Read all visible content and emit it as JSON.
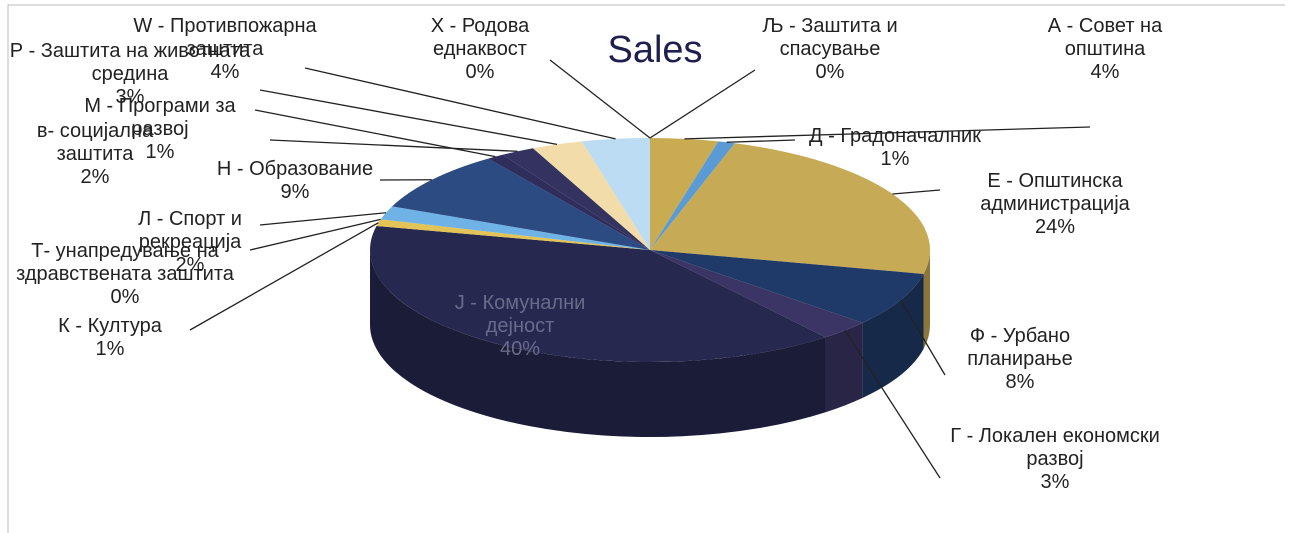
{
  "chart_data": {
    "type": "pie",
    "title": "Sales",
    "categories": [
      "А - Совет на општина",
      "Д - Градоначалник",
      "Е - Општинска администрација",
      "Ф - Урбано планирање",
      "Г - Локален економски развој",
      "Ј - Комунални дејност",
      "К - Култура",
      "Т- унапредување на здравствената заштита",
      "Л - Спорт и рекреација",
      "Н - Образование",
      "М - Програми за развој",
      "в- социјална заштита",
      "Р - Заштита на животната средина",
      "W - Противпожарна заштита",
      "Х - Родова еднаквост",
      "Љ - Заштита и спасување"
    ],
    "values": [
      4,
      1,
      24,
      8,
      3,
      40,
      1,
      0,
      2,
      9,
      1,
      2,
      3,
      4,
      0,
      0
    ],
    "value_labels": [
      "4%",
      "1%",
      "24%",
      "8%",
      "3%",
      "40%",
      "1%",
      "0%",
      "2%",
      "9%",
      "1%",
      "2%",
      "3%",
      "4%",
      "0%",
      "0%"
    ],
    "colors": [
      "#c9ab52",
      "#5b9bd5",
      "#c6aa55",
      "#1f3a68",
      "#3b3566",
      "#27284f",
      "#e3c355",
      "#8fc1ea",
      "#6fb3e6",
      "#2b4b82",
      "#2f2d5c",
      "#34325f",
      "#f2dcaa",
      "#bcdcf4",
      "#a6a6a6",
      "#9c9c9c"
    ]
  }
}
